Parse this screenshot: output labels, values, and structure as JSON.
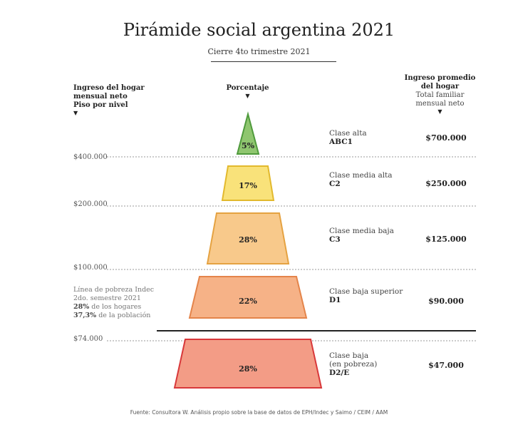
{
  "chart_data": {
    "type": "pyramid",
    "title": "Pirámide social argentina 2021",
    "subtitle": "Cierre 4to trimestre 2021",
    "left_header": [
      "Ingreso del hogar",
      "mensual neto",
      "Piso por nivel"
    ],
    "center_header": "Porcentaje",
    "right_header": {
      "bold": [
        "Ingreso promedio",
        "del hogar"
      ],
      "sub": [
        "Total familiar",
        "mensual neto"
      ]
    },
    "levels": [
      {
        "pct_label": "5%",
        "value": 5,
        "class": "Clase alta",
        "code": "ABC1",
        "income": "$700.000",
        "fill": "#8fc66f",
        "stroke": "#4f9a3c"
      },
      {
        "pct_label": "17%",
        "value": 17,
        "class": "Clase media alta",
        "code": "C2",
        "income": "$250.000",
        "fill": "#f9e27a",
        "stroke": "#e2b92d"
      },
      {
        "pct_label": "28%",
        "value": 28,
        "class": "Clase media baja",
        "code": "C3",
        "income": "$125.000",
        "fill": "#f8c98b",
        "stroke": "#e5a241"
      },
      {
        "pct_label": "22%",
        "value": 22,
        "class": "Clase baja superior",
        "code": "D1",
        "income": "$90.000",
        "fill": "#f6b287",
        "stroke": "#e4844a"
      },
      {
        "pct_label": "28%",
        "value": 28,
        "class": "Clase baja",
        "class2": "(en pobreza)",
        "code": "D2/E",
        "income": "$47.000",
        "fill": "#f39c86",
        "stroke": "#d8383a"
      }
    ],
    "floors": [
      "$400.000",
      "$200.000",
      "$100.000",
      "$74.000"
    ],
    "poverty_note": {
      "line1": "Línea de pobreza Indec",
      "line2": "2do. semestre 2021",
      "households_bold": "28%",
      "households_text": "de los hogares",
      "population_bold": "37,3%",
      "population_text": "de la población"
    },
    "source": "Fuente: Consultora W. Análisis propio sobre la base de datos de EPH/Indec y Saimo / CEIM / AAM"
  }
}
